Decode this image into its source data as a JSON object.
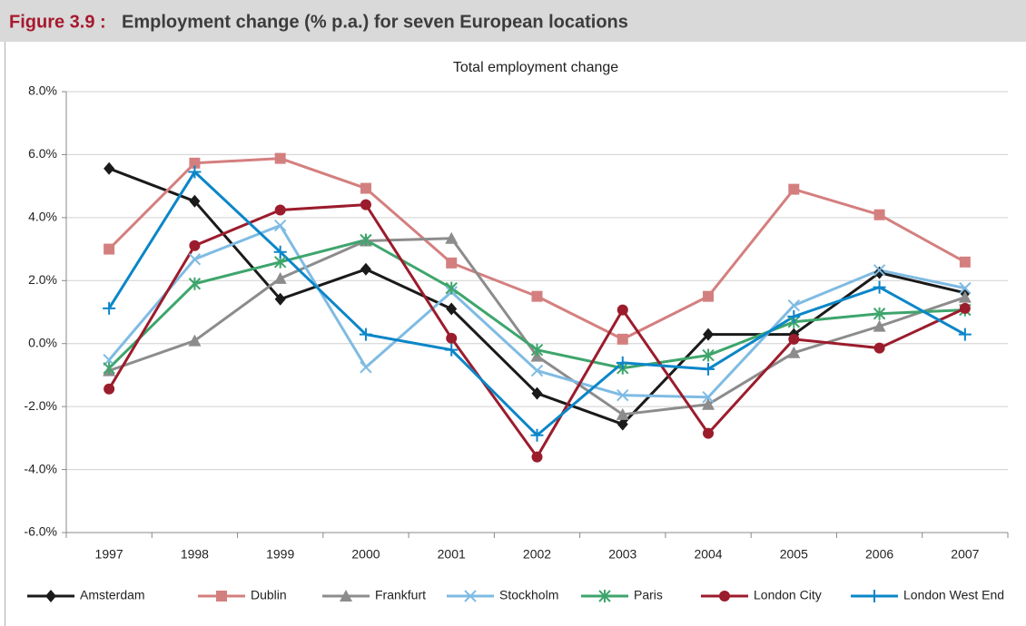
{
  "header": {
    "label": "Figure 3.9 :",
    "title": "Employment change (% p.a.) for seven European locations"
  },
  "chart_data": {
    "type": "line",
    "title": "Total employment change",
    "categories": [
      "1997",
      "1998",
      "1999",
      "2000",
      "2001",
      "2002",
      "2003",
      "2004",
      "2005",
      "2006",
      "2007"
    ],
    "ylim": [
      -6,
      8
    ],
    "yticks": [
      {
        "value": -6,
        "label": "-6.0%"
      },
      {
        "value": -4,
        "label": "-4.0%"
      },
      {
        "value": -2,
        "label": "-2.0%"
      },
      {
        "value": 0,
        "label": "0.0%"
      },
      {
        "value": 2,
        "label": "2.0%"
      },
      {
        "value": 4,
        "label": "4.0%"
      },
      {
        "value": 6,
        "label": "6.0%"
      },
      {
        "value": 8,
        "label": "8.0%"
      }
    ],
    "grid": true,
    "legend": "bottom",
    "series": [
      {
        "name": "Amsterdam",
        "color": "#1a1a1a",
        "marker": "diamond",
        "values": [
          5.56,
          4.52,
          1.41,
          2.36,
          1.1,
          -1.58,
          -2.56,
          0.29,
          0.29,
          2.25,
          1.61
        ]
      },
      {
        "name": "Dublin",
        "color": "#d47f7f",
        "marker": "square",
        "values": [
          3.0,
          5.73,
          5.88,
          4.93,
          2.56,
          1.5,
          0.14,
          1.5,
          4.9,
          4.09,
          2.59
        ]
      },
      {
        "name": "Frankfurt",
        "color": "#8c8c8c",
        "marker": "triangle",
        "values": [
          -0.86,
          0.09,
          2.07,
          3.26,
          3.34,
          -0.4,
          -2.25,
          -1.93,
          -0.29,
          0.55,
          1.47
        ]
      },
      {
        "name": "Stockholm",
        "color": "#7fbbe3",
        "marker": "x",
        "values": [
          -0.52,
          2.68,
          3.75,
          -0.75,
          1.64,
          -0.86,
          -1.64,
          -1.7,
          1.21,
          2.33,
          1.76
        ]
      },
      {
        "name": "Paris",
        "color": "#3ea56c",
        "marker": "asterisk",
        "values": [
          -0.78,
          1.9,
          2.59,
          3.29,
          1.76,
          -0.2,
          -0.78,
          -0.37,
          0.69,
          0.95,
          1.07
        ]
      },
      {
        "name": "London City",
        "color": "#9b1c2c",
        "marker": "circle",
        "values": [
          -1.44,
          3.11,
          4.24,
          4.41,
          0.17,
          -3.6,
          1.07,
          -2.85,
          0.14,
          -0.14,
          1.12
        ]
      },
      {
        "name": "London West End",
        "color": "#0b86c8",
        "marker": "plus",
        "values": [
          1.12,
          5.45,
          2.91,
          0.29,
          -0.2,
          -2.91,
          -0.61,
          -0.81,
          0.86,
          1.79,
          0.29
        ]
      }
    ]
  }
}
